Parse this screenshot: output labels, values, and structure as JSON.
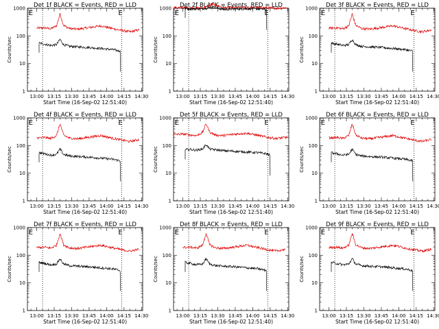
{
  "colors": {
    "events": "#000000",
    "lld": "#e00000",
    "background": "#ffffff"
  },
  "chart_data": [
    {
      "type": "line",
      "title": "Det 1f BLACK = Events, RED = LLD",
      "ylabel": "Counts/sec",
      "xlabel": "Start Time (16-Sep-02 12:51:40)",
      "xlim": [
        "12:52",
        "14:31"
      ],
      "ylim": [
        1,
        1000
      ],
      "yscale": "log",
      "grid": false,
      "xticks": [
        "13:00",
        "13:15",
        "13:30",
        "13:45",
        "14:00",
        "14:15",
        "14:30"
      ],
      "yticks": [
        "1",
        "10",
        "100",
        "1000"
      ],
      "markers": [
        {
          "label": "E",
          "x": "12:53"
        },
        {
          "label": "E",
          "x": "14:10"
        }
      ],
      "vlines": [
        "13:05",
        "14:13"
      ],
      "series": [
        {
          "color": "lld",
          "x": [
            "13:00",
            "13:07",
            "13:12",
            "13:17",
            "13:20",
            "13:23",
            "13:28",
            "13:35",
            "13:45",
            "13:55",
            "14:05",
            "14:12",
            "14:20",
            "14:28"
          ],
          "y": [
            190,
            195,
            180,
            230,
            620,
            240,
            185,
            175,
            200,
            230,
            185,
            160,
            140,
            165
          ]
        },
        {
          "color": "events",
          "x": [
            "13:02",
            "13:07",
            "13:12",
            "13:17",
            "13:20",
            "13:23",
            "13:28",
            "13:35",
            "13:45",
            "13:55",
            "14:05",
            "14:12"
          ],
          "y": [
            55,
            50,
            45,
            48,
            75,
            48,
            42,
            40,
            38,
            35,
            32,
            28
          ]
        }
      ]
    },
    {
      "type": "line",
      "title": "Det 2f BLACK = Events, RED = LLD",
      "ylabel": "Counts/sec",
      "xlabel": "Start Time (16-Sep-02 12:51:40)",
      "xlim": [
        "12:52",
        "14:31"
      ],
      "ylim": [
        1,
        1000
      ],
      "yscale": "log",
      "grid": false,
      "xticks": [
        "13:00",
        "13:15",
        "13:30",
        "13:45",
        "14:00",
        "14:15",
        "14:30"
      ],
      "yticks": [
        "1",
        "10",
        "100",
        "1000"
      ],
      "markers": [
        {
          "label": "E",
          "x": "12:53"
        },
        {
          "label": "E",
          "x": "14:10"
        }
      ],
      "vlines": [
        "13:05",
        "14:13"
      ],
      "series": [
        {
          "color": "lld",
          "x": [
            "12:52",
            "13:05",
            "13:15",
            "13:20",
            "13:25",
            "13:35",
            "13:50",
            "14:05",
            "14:20",
            "14:30"
          ],
          "y": [
            1050,
            1050,
            1000,
            1100,
            1400,
            1050,
            1050,
            1050,
            1000,
            1050
          ]
        },
        {
          "color": "events",
          "x": [
            "13:02",
            "13:05",
            "13:15",
            "13:20",
            "13:25",
            "13:35",
            "13:50",
            "14:05",
            "14:12"
          ],
          "y": [
            1000,
            950,
            950,
            1000,
            1100,
            900,
            950,
            950,
            900
          ]
        }
      ]
    },
    {
      "type": "line",
      "title": "Det 3f BLACK = Events, RED = LLD",
      "ylabel": "Counts/sec",
      "xlabel": "Start Time (16-Sep-02 12:51:40)",
      "xlim": [
        "12:52",
        "14:31"
      ],
      "ylim": [
        1,
        1000
      ],
      "yscale": "log",
      "grid": false,
      "xticks": [
        "13:00",
        "13:15",
        "13:30",
        "13:45",
        "14:00",
        "14:15",
        "14:30"
      ],
      "yticks": [
        "1",
        "10",
        "100",
        "1000"
      ],
      "markers": [
        {
          "label": "E",
          "x": "12:53"
        },
        {
          "label": "E",
          "x": "14:10"
        }
      ],
      "vlines": [
        "13:05",
        "14:13"
      ],
      "series": [
        {
          "color": "lld",
          "x": [
            "13:00",
            "13:07",
            "13:12",
            "13:17",
            "13:20",
            "13:23",
            "13:28",
            "13:35",
            "13:45",
            "13:55",
            "14:05",
            "14:12",
            "14:20",
            "14:28"
          ],
          "y": [
            190,
            195,
            180,
            230,
            620,
            240,
            185,
            175,
            200,
            230,
            185,
            160,
            140,
            165
          ]
        },
        {
          "color": "events",
          "x": [
            "13:02",
            "13:07",
            "13:12",
            "13:17",
            "13:20",
            "13:23",
            "13:28",
            "13:35",
            "13:45",
            "13:55",
            "14:05",
            "14:12"
          ],
          "y": [
            55,
            50,
            45,
            48,
            75,
            48,
            42,
            40,
            38,
            35,
            32,
            28
          ]
        }
      ]
    },
    {
      "type": "line",
      "title": "Det 4f BLACK = Events, RED = LLD",
      "ylabel": "Counts/sec",
      "xlabel": "Start Time (16-Sep-02 12:51:40)",
      "xlim": [
        "12:52",
        "14:31"
      ],
      "ylim": [
        1,
        1000
      ],
      "yscale": "log",
      "grid": false,
      "xticks": [
        "13:00",
        "13:15",
        "13:30",
        "13:45",
        "14:00",
        "14:15",
        "14:30"
      ],
      "yticks": [
        "1",
        "10",
        "100",
        "1000"
      ],
      "markers": [
        {
          "label": "E",
          "x": "12:53"
        },
        {
          "label": "E",
          "x": "14:10"
        }
      ],
      "vlines": [
        "13:05",
        "14:13"
      ],
      "series": [
        {
          "color": "lld",
          "x": [
            "13:00",
            "13:07",
            "13:12",
            "13:17",
            "13:20",
            "13:23",
            "13:28",
            "13:35",
            "13:45",
            "13:55",
            "14:05",
            "14:12",
            "14:20",
            "14:28"
          ],
          "y": [
            190,
            195,
            180,
            230,
            620,
            240,
            185,
            175,
            200,
            230,
            185,
            160,
            140,
            165
          ]
        },
        {
          "color": "events",
          "x": [
            "13:02",
            "13:07",
            "13:12",
            "13:17",
            "13:20",
            "13:23",
            "13:28",
            "13:35",
            "13:45",
            "13:55",
            "14:05",
            "14:12"
          ],
          "y": [
            55,
            50,
            45,
            48,
            75,
            48,
            42,
            40,
            38,
            35,
            32,
            28
          ]
        }
      ]
    },
    {
      "type": "line",
      "title": "Det 5f BLACK = Events, RED = LLD",
      "ylabel": "Counts/sec",
      "xlabel": "Start Time (16-Sep-02 12:51:40)",
      "xlim": [
        "12:52",
        "14:31"
      ],
      "ylim": [
        1,
        1000
      ],
      "yscale": "log",
      "grid": false,
      "xticks": [
        "13:00",
        "13:15",
        "13:30",
        "13:45",
        "14:00",
        "14:15",
        "14:30"
      ],
      "yticks": [
        "1",
        "10",
        "100",
        "1000"
      ],
      "markers": [
        {
          "label": "E",
          "x": "12:53"
        },
        {
          "label": "E",
          "x": "14:10"
        }
      ],
      "vlines": [
        "13:05",
        "14:13"
      ],
      "series": [
        {
          "color": "lld",
          "x": [
            "12:52",
            "13:00",
            "13:07",
            "13:12",
            "13:17",
            "13:20",
            "13:23",
            "13:28",
            "13:35",
            "13:45",
            "13:55",
            "14:05",
            "14:12",
            "14:20",
            "14:30"
          ],
          "y": [
            250,
            260,
            240,
            230,
            300,
            620,
            310,
            240,
            230,
            260,
            280,
            230,
            200,
            180,
            200
          ]
        },
        {
          "color": "events",
          "x": [
            "13:02",
            "13:07",
            "13:12",
            "13:17",
            "13:20",
            "13:23",
            "13:28",
            "13:35",
            "13:45",
            "13:55",
            "14:05",
            "14:12",
            "14:15"
          ],
          "y": [
            70,
            72,
            68,
            75,
            110,
            75,
            70,
            65,
            62,
            58,
            55,
            50,
            45
          ]
        }
      ]
    },
    {
      "type": "line",
      "title": "Det 6f BLACK = Events, RED = LLD",
      "ylabel": "Counts/sec",
      "xlabel": "Start Time (16-Sep-02 12:51:40)",
      "xlim": [
        "12:52",
        "14:31"
      ],
      "ylim": [
        1,
        1000
      ],
      "yscale": "log",
      "grid": false,
      "xticks": [
        "13:00",
        "13:15",
        "13:30",
        "13:45",
        "14:00",
        "14:15",
        "14:30"
      ],
      "yticks": [
        "1",
        "10",
        "100",
        "1000"
      ],
      "markers": [
        {
          "label": "E",
          "x": "12:53"
        },
        {
          "label": "E",
          "x": "14:10"
        }
      ],
      "vlines": [
        "13:05",
        "14:13"
      ],
      "series": [
        {
          "color": "lld",
          "x": [
            "13:00",
            "13:07",
            "13:12",
            "13:17",
            "13:20",
            "13:23",
            "13:28",
            "13:35",
            "13:45",
            "13:55",
            "14:05",
            "14:12",
            "14:20",
            "14:28"
          ],
          "y": [
            190,
            195,
            180,
            230,
            620,
            240,
            185,
            175,
            200,
            230,
            185,
            160,
            140,
            165
          ]
        },
        {
          "color": "events",
          "x": [
            "13:02",
            "13:07",
            "13:12",
            "13:17",
            "13:20",
            "13:23",
            "13:28",
            "13:35",
            "13:45",
            "13:55",
            "14:05",
            "14:12"
          ],
          "y": [
            55,
            50,
            45,
            48,
            75,
            48,
            42,
            40,
            38,
            35,
            32,
            28
          ]
        }
      ]
    },
    {
      "type": "line",
      "title": "Det 7f BLACK = Events, RED = LLD",
      "ylabel": "Counts/sec",
      "xlabel": "Start Time (16-Sep-02 12:51:40)",
      "xlim": [
        "12:52",
        "14:31"
      ],
      "ylim": [
        1,
        1000
      ],
      "yscale": "log",
      "grid": false,
      "xticks": [
        "13:00",
        "13:15",
        "13:30",
        "13:45",
        "14:00",
        "14:15",
        "14:30"
      ],
      "yticks": [
        "1",
        "10",
        "100",
        "1000"
      ],
      "markers": [
        {
          "label": "E",
          "x": "12:53"
        },
        {
          "label": "E",
          "x": "14:10"
        }
      ],
      "vlines": [
        "13:05",
        "14:13"
      ],
      "series": [
        {
          "color": "lld",
          "x": [
            "13:00",
            "13:07",
            "13:12",
            "13:17",
            "13:20",
            "13:23",
            "13:28",
            "13:35",
            "13:45",
            "13:55",
            "14:05",
            "14:12",
            "14:20",
            "14:28"
          ],
          "y": [
            190,
            195,
            180,
            230,
            620,
            240,
            185,
            175,
            200,
            230,
            185,
            160,
            140,
            165
          ]
        },
        {
          "color": "events",
          "x": [
            "13:02",
            "13:07",
            "13:12",
            "13:17",
            "13:20",
            "13:23",
            "13:28",
            "13:35",
            "13:45",
            "13:55",
            "14:05",
            "14:12"
          ],
          "y": [
            55,
            50,
            45,
            48,
            75,
            48,
            42,
            40,
            38,
            35,
            32,
            28
          ]
        }
      ]
    },
    {
      "type": "line",
      "title": "Det 8f BLACK = Events, RED = LLD",
      "ylabel": "Counts/sec",
      "xlabel": "Start Time (16-Sep-02 12:51:40)",
      "xlim": [
        "12:52",
        "14:31"
      ],
      "ylim": [
        1,
        1000
      ],
      "yscale": "log",
      "grid": false,
      "xticks": [
        "13:00",
        "13:15",
        "13:30",
        "13:45",
        "14:00",
        "14:15",
        "14:30"
      ],
      "yticks": [
        "1",
        "10",
        "100",
        "1000"
      ],
      "markers": [
        {
          "label": "E",
          "x": "12:53"
        },
        {
          "label": "E",
          "x": "14:10"
        }
      ],
      "vlines": [
        "13:05",
        "14:13"
      ],
      "series": [
        {
          "color": "lld",
          "x": [
            "13:00",
            "13:07",
            "13:12",
            "13:17",
            "13:20",
            "13:23",
            "13:28",
            "13:35",
            "13:45",
            "13:55",
            "14:05",
            "14:12",
            "14:20",
            "14:28"
          ],
          "y": [
            190,
            195,
            180,
            230,
            620,
            240,
            185,
            175,
            200,
            230,
            185,
            160,
            140,
            165
          ]
        },
        {
          "color": "events",
          "x": [
            "13:02",
            "13:07",
            "13:12",
            "13:17",
            "13:20",
            "13:23",
            "13:28",
            "13:35",
            "13:45",
            "13:55",
            "14:05",
            "14:12"
          ],
          "y": [
            55,
            50,
            45,
            48,
            75,
            48,
            42,
            40,
            38,
            35,
            32,
            28
          ]
        }
      ]
    },
    {
      "type": "line",
      "title": "Det 9f BLACK = Events, RED = LLD",
      "ylabel": "Counts/sec",
      "xlabel": "Start Time (16-Sep-02 12:51:40)",
      "xlim": [
        "12:52",
        "14:31"
      ],
      "ylim": [
        1,
        1000
      ],
      "yscale": "log",
      "grid": false,
      "xticks": [
        "13:00",
        "13:15",
        "13:30",
        "13:45",
        "14:00",
        "14:15",
        "14:30"
      ],
      "yticks": [
        "1",
        "10",
        "100",
        "1000"
      ],
      "markers": [
        {
          "label": "E",
          "x": "12:53"
        },
        {
          "label": "E",
          "x": "14:10"
        }
      ],
      "vlines": [
        "13:05",
        "14:13"
      ],
      "series": [
        {
          "color": "lld",
          "x": [
            "13:00",
            "13:07",
            "13:12",
            "13:17",
            "13:20",
            "13:23",
            "13:28",
            "13:35",
            "13:45",
            "13:55",
            "14:05",
            "14:12",
            "14:20",
            "14:28"
          ],
          "y": [
            190,
            195,
            180,
            230,
            620,
            240,
            185,
            175,
            200,
            230,
            185,
            160,
            140,
            165
          ]
        },
        {
          "color": "events",
          "x": [
            "13:02",
            "13:07",
            "13:12",
            "13:17",
            "13:20",
            "13:23",
            "13:28",
            "13:35",
            "13:45",
            "13:55",
            "14:05",
            "14:12"
          ],
          "y": [
            55,
            50,
            45,
            48,
            75,
            48,
            42,
            40,
            38,
            35,
            32,
            28
          ]
        }
      ]
    }
  ]
}
